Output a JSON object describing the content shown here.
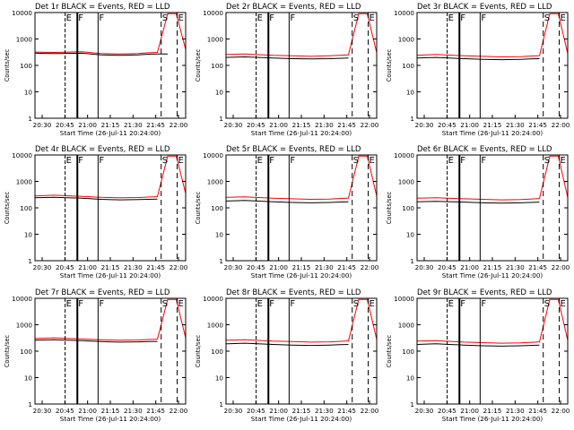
{
  "figure": {
    "background": "#ffffff",
    "event_color": "#000000",
    "lld_color": "#ff0000"
  },
  "chart_data": [
    {
      "type": "line",
      "title": "Det 1r BLACK = Events, RED = LLD",
      "xlabel": "Start Time (26-Jul-11 20:24:00)",
      "ylabel": "Counts/sec",
      "x_ticks": [
        "20:30",
        "20:45",
        "21:00",
        "21:15",
        "21:30",
        "21:45",
        "22:00"
      ],
      "y_ticks": [
        "1",
        "10",
        "100",
        "1000",
        "10000"
      ],
      "ylim": [
        1,
        10000
      ],
      "yscale": "log",
      "markers": [
        "E",
        "F",
        "F",
        "S",
        "E"
      ],
      "series": [
        {
          "name": "Events",
          "x": [
            20.4,
            20.6,
            20.9,
            21.1,
            21.3,
            21.5,
            21.6,
            21.7,
            21.81,
            21.8,
            21.82
          ],
          "y": [
            290,
            280,
            290,
            250,
            240,
            250,
            265,
            270,
            272,
            0,
            0
          ]
        },
        {
          "name": "LLD",
          "x": [
            20.4,
            20.6,
            20.9,
            21.1,
            21.3,
            21.5,
            21.6,
            21.7,
            21.81,
            21.9,
            22
          ],
          "y": [
            320,
            310,
            330,
            280,
            270,
            280,
            300,
            310,
            9000,
            9000,
            400
          ]
        }
      ]
    },
    {
      "type": "line",
      "title": "Det 2r BLACK = Events, RED = LLD",
      "xlabel": "Start Time (26-Jul-11 20:24:00)",
      "ylabel": "Counts/sec",
      "x_ticks": [
        "20:30",
        "20:45",
        "21:00",
        "21:15",
        "21:30",
        "21:45",
        "22:00"
      ],
      "y_ticks": [
        "1",
        "10",
        "100",
        "1000",
        "10000"
      ],
      "ylim": [
        1,
        10000
      ],
      "yscale": "log",
      "markers": [
        "E",
        "F",
        "F",
        "S",
        "E"
      ],
      "series": [
        {
          "name": "Events",
          "x": [
            20.4,
            20.6,
            20.9,
            21.1,
            21.3,
            21.5,
            21.6,
            21.7
          ],
          "y": [
            200,
            210,
            190,
            180,
            175,
            180,
            185,
            190
          ]
        },
        {
          "name": "LLD",
          "x": [
            20.4,
            20.6,
            20.9,
            21.1,
            21.3,
            21.5,
            21.6,
            21.7,
            21.81,
            21.9,
            22
          ],
          "y": [
            260,
            270,
            240,
            230,
            220,
            230,
            240,
            250,
            9000,
            9000,
            300
          ]
        }
      ]
    },
    {
      "type": "line",
      "title": "Det 3r BLACK = Events, RED = LLD",
      "xlabel": "Start Time (26-Jul-11 20:24:00)",
      "ylabel": "Counts/sec",
      "x_ticks": [
        "20:30",
        "20:45",
        "21:00",
        "21:15",
        "21:30",
        "21:45",
        "22:00"
      ],
      "y_ticks": [
        "1",
        "10",
        "100",
        "1000",
        "10000"
      ],
      "ylim": [
        1,
        10000
      ],
      "yscale": "log",
      "markers": [
        "E",
        "F",
        "F",
        "S",
        "E"
      ],
      "series": [
        {
          "name": "Events",
          "x": [
            20.4,
            20.6,
            20.9,
            21.1,
            21.3,
            21.5,
            21.6,
            21.7
          ],
          "y": [
            190,
            200,
            180,
            170,
            165,
            170,
            175,
            180
          ]
        },
        {
          "name": "LLD",
          "x": [
            20.4,
            20.6,
            20.9,
            21.1,
            21.3,
            21.5,
            21.6,
            21.7,
            21.81,
            21.9,
            22
          ],
          "y": [
            240,
            260,
            230,
            220,
            210,
            215,
            225,
            235,
            9000,
            9000,
            280
          ]
        }
      ]
    },
    {
      "type": "line",
      "title": "Det 4r BLACK = Events, RED = LLD",
      "xlabel": "Start Time (26-Jul-11 20:24:00)",
      "ylabel": "Counts/sec",
      "x_ticks": [
        "20:30",
        "20:45",
        "21:00",
        "21:15",
        "21:30",
        "21:45",
        "22:00"
      ],
      "y_ticks": [
        "1",
        "10",
        "100",
        "1000",
        "10000"
      ],
      "ylim": [
        1,
        10000
      ],
      "yscale": "log",
      "markers": [
        "E",
        "F",
        "F",
        "S",
        "E"
      ],
      "series": [
        {
          "name": "Events",
          "x": [
            20.4,
            20.6,
            20.9,
            21.1,
            21.3,
            21.5,
            21.6,
            21.7
          ],
          "y": [
            240,
            250,
            230,
            210,
            200,
            205,
            210,
            215
          ]
        },
        {
          "name": "LLD",
          "x": [
            20.4,
            20.6,
            20.9,
            21.1,
            21.3,
            21.5,
            21.6,
            21.7,
            21.81,
            21.9,
            22
          ],
          "y": [
            280,
            300,
            270,
            250,
            240,
            245,
            255,
            265,
            9000,
            9000,
            350
          ]
        }
      ]
    },
    {
      "type": "line",
      "title": "Det 5r BLACK = Events, RED = LLD",
      "xlabel": "Start Time (26-Jul-11 20:24:00)",
      "ylabel": "Counts/sec",
      "x_ticks": [
        "20:30",
        "20:45",
        "21:00",
        "21:15",
        "21:30",
        "21:45",
        "22:00"
      ],
      "y_ticks": [
        "1",
        "10",
        "100",
        "1000",
        "10000"
      ],
      "ylim": [
        1,
        10000
      ],
      "yscale": "log",
      "markers": [
        "E",
        "F",
        "F",
        "S",
        "E"
      ],
      "series": [
        {
          "name": "Events",
          "x": [
            20.4,
            20.6,
            20.9,
            21.1,
            21.3,
            21.5,
            21.6,
            21.7
          ],
          "y": [
            180,
            190,
            170,
            160,
            155,
            160,
            165,
            170
          ]
        },
        {
          "name": "LLD",
          "x": [
            20.4,
            20.6,
            20.9,
            21.1,
            21.3,
            21.5,
            21.6,
            21.7,
            21.81,
            21.9,
            22
          ],
          "y": [
            250,
            260,
            230,
            220,
            210,
            215,
            225,
            235,
            9000,
            9000,
            280
          ]
        }
      ]
    },
    {
      "type": "line",
      "title": "Det 6r BLACK = Events, RED = LLD",
      "xlabel": "Start Time (26-Jul-11 20:24:00)",
      "ylabel": "Counts/sec",
      "x_ticks": [
        "20:30",
        "20:45",
        "21:00",
        "21:15",
        "21:30",
        "21:45",
        "22:00"
      ],
      "y_ticks": [
        "1",
        "10",
        "100",
        "1000",
        "10000"
      ],
      "ylim": [
        1,
        10000
      ],
      "yscale": "log",
      "markers": [
        "E",
        "F",
        "F",
        "S",
        "E"
      ],
      "series": [
        {
          "name": "Events",
          "x": [
            20.4,
            20.6,
            20.9,
            21.1,
            21.3,
            21.5,
            21.6,
            21.7
          ],
          "y": [
            170,
            175,
            165,
            155,
            150,
            155,
            160,
            165
          ]
        },
        {
          "name": "LLD",
          "x": [
            20.4,
            20.6,
            20.9,
            21.1,
            21.3,
            21.5,
            21.6,
            21.7,
            21.81,
            21.9,
            22
          ],
          "y": [
            230,
            240,
            220,
            210,
            200,
            205,
            215,
            225,
            9000,
            9000,
            250
          ]
        }
      ]
    },
    {
      "type": "line",
      "title": "Det 7r BLACK = Events, RED = LLD",
      "xlabel": "Start Time (26-Jul-11 20:24:00)",
      "ylabel": "Counts/sec",
      "x_ticks": [
        "20:30",
        "20:45",
        "21:00",
        "21:15",
        "21:30",
        "21:45",
        "22:00"
      ],
      "y_ticks": [
        "1",
        "10",
        "100",
        "1000",
        "10000"
      ],
      "ylim": [
        1,
        10000
      ],
      "yscale": "log",
      "markers": [
        "E",
        "F",
        "F",
        "S",
        "E"
      ],
      "series": [
        {
          "name": "Events",
          "x": [
            20.4,
            20.6,
            20.9,
            21.1,
            21.3,
            21.5,
            21.6,
            21.7
          ],
          "y": [
            260,
            270,
            250,
            230,
            220,
            225,
            230,
            235
          ]
        },
        {
          "name": "LLD",
          "x": [
            20.4,
            20.6,
            20.9,
            21.1,
            21.3,
            21.5,
            21.6,
            21.7,
            21.81,
            21.9,
            22
          ],
          "y": [
            300,
            320,
            290,
            270,
            260,
            265,
            275,
            285,
            9000,
            9000,
            320
          ]
        }
      ]
    },
    {
      "type": "line",
      "title": "Det 8r BLACK = Events, RED = LLD",
      "xlabel": "Start Time (26-Jul-11 20:24:00)",
      "ylabel": "Counts/sec",
      "x_ticks": [
        "20:30",
        "20:45",
        "21:00",
        "21:15",
        "21:30",
        "21:45",
        "22:00"
      ],
      "y_ticks": [
        "1",
        "10",
        "100",
        "1000",
        "10000"
      ],
      "ylim": [
        1,
        10000
      ],
      "yscale": "log",
      "markers": [
        "E",
        "F",
        "F",
        "S",
        "E"
      ],
      "series": [
        {
          "name": "Events",
          "x": [
            20.4,
            20.6,
            20.9,
            21.1,
            21.3,
            21.5,
            21.6,
            21.7
          ],
          "y": [
            190,
            200,
            180,
            170,
            165,
            170,
            175,
            180
          ]
        },
        {
          "name": "LLD",
          "x": [
            20.4,
            20.6,
            20.9,
            21.1,
            21.3,
            21.5,
            21.6,
            21.7,
            21.81,
            21.9,
            22
          ],
          "y": [
            260,
            270,
            240,
            230,
            220,
            225,
            235,
            245,
            9000,
            9000,
            280
          ]
        }
      ]
    },
    {
      "type": "line",
      "title": "Det 9r BLACK = Events, RED = LLD",
      "xlabel": "Start Time (26-Jul-11 20:24:00)",
      "ylabel": "Counts/sec",
      "x_ticks": [
        "20:30",
        "20:45",
        "21:00",
        "21:15",
        "21:30",
        "21:45",
        "22:00"
      ],
      "y_ticks": [
        "1",
        "10",
        "100",
        "1000",
        "10000"
      ],
      "ylim": [
        1,
        10000
      ],
      "yscale": "log",
      "markers": [
        "E",
        "F",
        "F",
        "S",
        "E"
      ],
      "series": [
        {
          "name": "Events",
          "x": [
            20.4,
            20.6,
            20.9,
            21.1,
            21.3,
            21.5,
            21.6,
            21.7
          ],
          "y": [
            180,
            190,
            170,
            160,
            155,
            160,
            165,
            170
          ]
        },
        {
          "name": "LLD",
          "x": [
            20.4,
            20.6,
            20.9,
            21.1,
            21.3,
            21.5,
            21.6,
            21.7,
            21.81,
            21.9,
            22
          ],
          "y": [
            240,
            250,
            220,
            210,
            200,
            205,
            215,
            225,
            9000,
            9000,
            260
          ]
        }
      ]
    }
  ]
}
